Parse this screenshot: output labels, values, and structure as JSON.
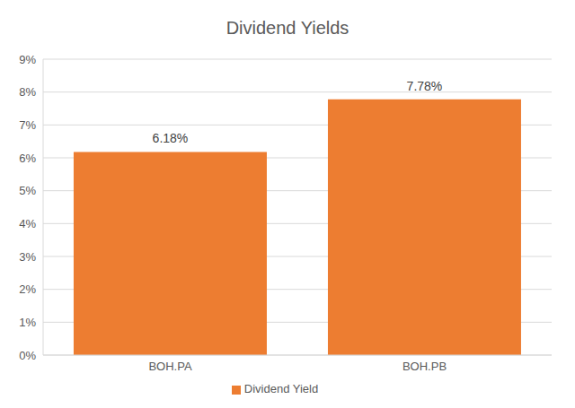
{
  "chart_data": {
    "type": "bar",
    "title": "Dividend Yields",
    "categories": [
      "BOH.PA",
      "BOH.PB"
    ],
    "series": [
      {
        "name": "Dividend Yield",
        "color": "#ed7d31",
        "values": [
          6.18,
          7.78
        ],
        "value_labels": [
          "6.18%",
          "7.78%"
        ]
      }
    ],
    "ylim": [
      0,
      9
    ],
    "yticks": [
      {
        "value": 0,
        "label": "0%"
      },
      {
        "value": 1,
        "label": "1%"
      },
      {
        "value": 2,
        "label": "2%"
      },
      {
        "value": 3,
        "label": "3%"
      },
      {
        "value": 4,
        "label": "4%"
      },
      {
        "value": 5,
        "label": "5%"
      },
      {
        "value": 6,
        "label": "6%"
      },
      {
        "value": 7,
        "label": "7%"
      },
      {
        "value": 8,
        "label": "8%"
      },
      {
        "value": 9,
        "label": "9%"
      }
    ],
    "grid": true,
    "legend": "bottom",
    "data_labels": true
  }
}
